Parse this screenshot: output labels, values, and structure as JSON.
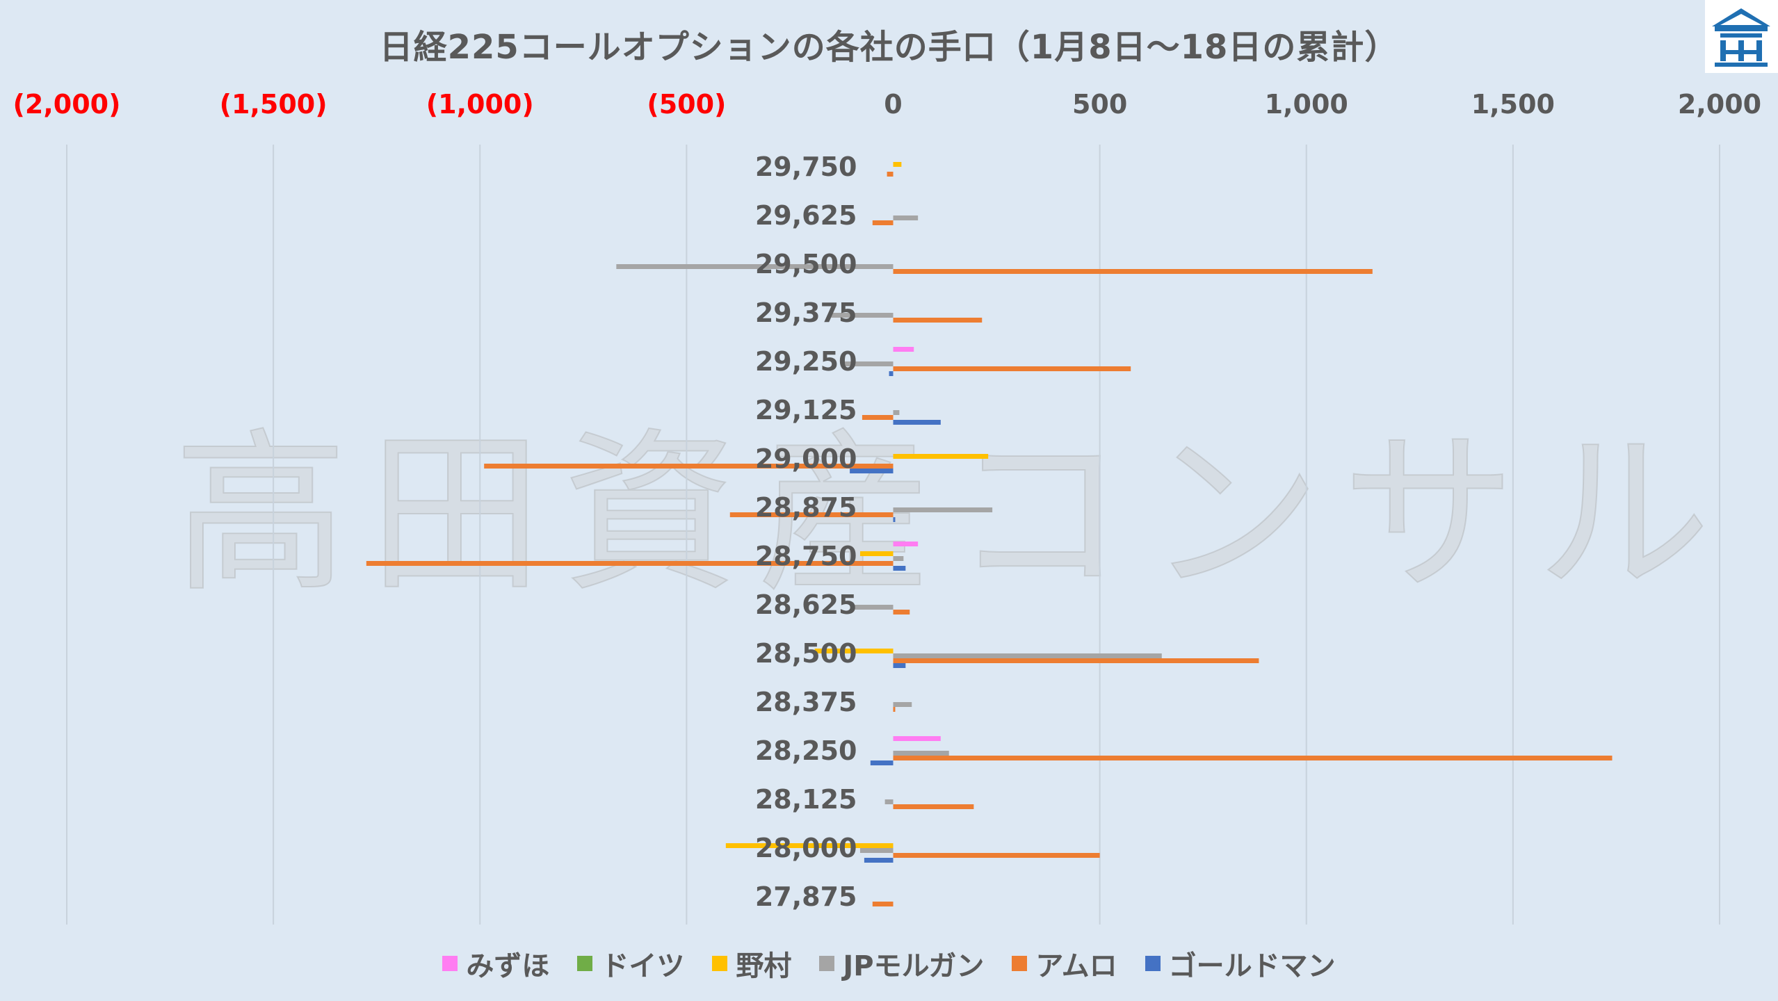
{
  "title": "日経225コールオプションの各社の手口（1月8日～18日の累計）",
  "watermark": "高田資産コンサル",
  "colors": {
    "background": "#dde8f3",
    "negative_tick": "#ff0000",
    "positive_tick": "#595959",
    "gridline": "#c8d2dc"
  },
  "icons": {
    "logo": "building-logo-icon"
  },
  "chart_data": {
    "type": "bar",
    "orientation": "horizontal",
    "title": "日経225コールオプションの各社の手口（1月8日～18日の累計）",
    "xlim": [
      -2000,
      2000
    ],
    "x_ticks": [
      -2000,
      -1500,
      -1000,
      -500,
      0,
      500,
      1000,
      1500,
      2000
    ],
    "x_tick_labels": [
      "(2,000)",
      "(1,500)",
      "(1,000)",
      "(500)",
      "0",
      "500",
      "1,000",
      "1,500",
      "2,000"
    ],
    "axis_position": "top",
    "grid": true,
    "legend_position": "bottom",
    "categories": [
      "29,750",
      "29,625",
      "29,500",
      "29,375",
      "29,250",
      "29,125",
      "29,000",
      "28,875",
      "28,750",
      "28,625",
      "28,500",
      "28,375",
      "28,250",
      "28,125",
      "28,000",
      "27,875"
    ],
    "series": [
      {
        "name": "みずほ",
        "color": "#ff7df2",
        "values": [
          0,
          0,
          0,
          0,
          50,
          0,
          0,
          0,
          60,
          0,
          0,
          0,
          115,
          0,
          0,
          0
        ]
      },
      {
        "name": "ドイツ",
        "color": "#70ad47",
        "values": [
          0,
          0,
          0,
          0,
          0,
          0,
          0,
          0,
          0,
          0,
          0,
          0,
          0,
          0,
          0,
          0
        ]
      },
      {
        "name": "野村",
        "color": "#ffc000",
        "values": [
          20,
          0,
          0,
          0,
          0,
          0,
          230,
          0,
          -80,
          0,
          -190,
          0,
          0,
          0,
          -405,
          0
        ]
      },
      {
        "name": "JPモルガン",
        "color": "#a5a5a5",
        "values": [
          0,
          60,
          -670,
          -150,
          -120,
          15,
          0,
          240,
          25,
          -100,
          650,
          45,
          135,
          -20,
          -80,
          0
        ]
      },
      {
        "name": "アムロ",
        "color": "#ed7d31",
        "values": [
          -15,
          -50,
          1160,
          215,
          575,
          -75,
          -990,
          -395,
          -1275,
          40,
          885,
          5,
          1740,
          195,
          500,
          -50
        ]
      },
      {
        "name": "ゴールドマン",
        "color": "#4472c4",
        "values": [
          0,
          0,
          0,
          0,
          -10,
          115,
          -105,
          5,
          30,
          0,
          30,
          0,
          -55,
          0,
          -70,
          0
        ]
      }
    ]
  }
}
